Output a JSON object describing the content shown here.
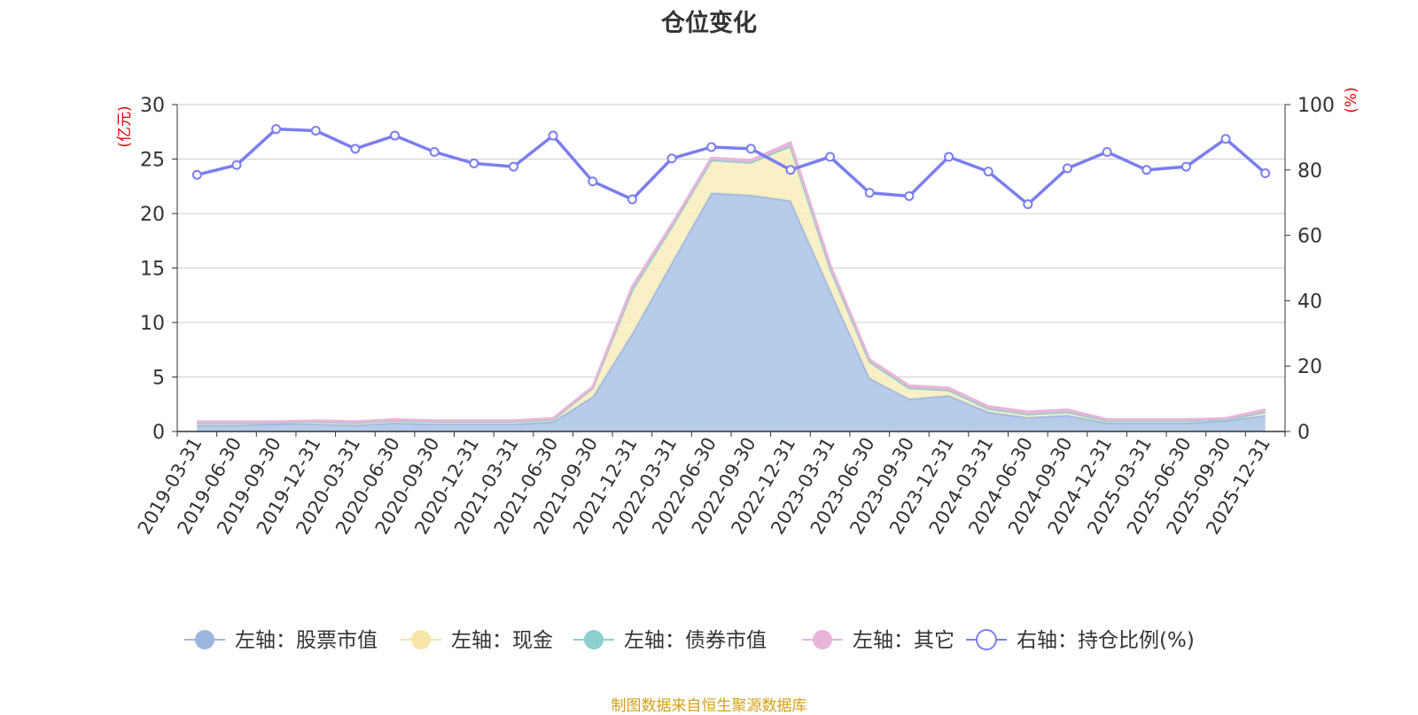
{
  "title": "仓位变化",
  "source": "制图数据来自恒生聚源数据库",
  "colors": {
    "stock": "#9db6e0",
    "stock_fill": "#b7cbea",
    "cash": "#f5e6a8",
    "cash_fill": "#faeec0",
    "bond": "#8ecfcf",
    "other": "#e8b5d8",
    "ratio": "#7b7ef0"
  },
  "chart_data": {
    "type": "area",
    "title": "仓位变化",
    "left_axis_unit": "(亿元)",
    "right_axis_unit": "(%)",
    "left_ylim": [
      0,
      30
    ],
    "left_yticks": [
      0,
      5,
      10,
      15,
      20,
      25,
      30
    ],
    "right_ylim": [
      0,
      100
    ],
    "right_yticks": [
      0,
      20,
      40,
      60,
      80,
      100
    ],
    "grid": true,
    "legend_position": "bottom",
    "categories": [
      "2019-03-31",
      "2019-06-30",
      "2019-09-30",
      "2019-12-31",
      "2020-03-31",
      "2020-06-30",
      "2020-09-30",
      "2020-12-31",
      "2021-03-31",
      "2021-06-30",
      "2021-09-30",
      "2021-12-31",
      "2022-03-31",
      "2022-06-30",
      "2022-09-30",
      "2022-12-31",
      "2023-03-31",
      "2023-06-30",
      "2023-09-30",
      "2023-12-31",
      "2024-03-31",
      "2024-06-30",
      "2024-09-30",
      "2024-12-31",
      "2025-03-31",
      "2025-06-30",
      "2025-09-30",
      "2025-12-31"
    ],
    "series": [
      {
        "name": "左轴：股票市值",
        "axis": "left",
        "stack": true,
        "values": [
          0.6,
          0.6,
          0.7,
          0.7,
          0.6,
          0.8,
          0.7,
          0.7,
          0.7,
          0.9,
          3.2,
          9.0,
          15.5,
          21.9,
          21.7,
          21.2,
          13.0,
          4.9,
          3.0,
          3.3,
          1.8,
          1.3,
          1.5,
          0.8,
          0.8,
          0.8,
          1.0,
          1.5
        ]
      },
      {
        "name": "左轴：现金",
        "axis": "left",
        "stack": true,
        "values": [
          0.2,
          0.2,
          0.1,
          0.2,
          0.2,
          0.2,
          0.2,
          0.2,
          0.2,
          0.2,
          0.8,
          4.0,
          3.3,
          3.0,
          3.0,
          5.0,
          2.0,
          1.5,
          1.0,
          0.5,
          0.3,
          0.3,
          0.3,
          0.2,
          0.2,
          0.2,
          0.1,
          0.3
        ]
      },
      {
        "name": "左轴：债券市值",
        "axis": "left",
        "stack": true,
        "values": [
          0,
          0,
          0,
          0,
          0,
          0,
          0,
          0,
          0,
          0,
          0,
          0,
          0,
          0,
          0,
          0,
          0,
          0,
          0,
          0,
          0,
          0,
          0,
          0,
          0,
          0,
          0,
          0
        ]
      },
      {
        "name": "左轴：其它",
        "axis": "left",
        "stack": true,
        "values": [
          0.1,
          0.1,
          0.1,
          0.1,
          0.1,
          0.1,
          0.1,
          0.1,
          0.1,
          0.1,
          0.1,
          0.3,
          0.2,
          0.2,
          0.2,
          0.3,
          0.3,
          0.2,
          0.2,
          0.2,
          0.2,
          0.2,
          0.2,
          0.1,
          0.1,
          0.1,
          0.1,
          0.2
        ]
      },
      {
        "name": "右轴：持仓比例(%)",
        "axis": "right",
        "type": "line",
        "values": [
          78.5,
          81.5,
          92.5,
          92.0,
          86.5,
          90.5,
          85.5,
          82.0,
          81.0,
          90.5,
          76.5,
          71.0,
          83.5,
          87.0,
          86.5,
          80.0,
          84.0,
          73.0,
          72.0,
          84.0,
          79.5,
          69.5,
          80.5,
          85.5,
          80.0,
          81.0,
          89.5,
          79.0
        ]
      }
    ]
  },
  "legend": [
    {
      "key": "stock",
      "label": "左轴：股票市值"
    },
    {
      "key": "cash",
      "label": "左轴：现金"
    },
    {
      "key": "bond",
      "label": "左轴：债券市值"
    },
    {
      "key": "other",
      "label": "左轴：其它"
    },
    {
      "key": "ratio",
      "label": "右轴：持仓比例(%)"
    }
  ]
}
